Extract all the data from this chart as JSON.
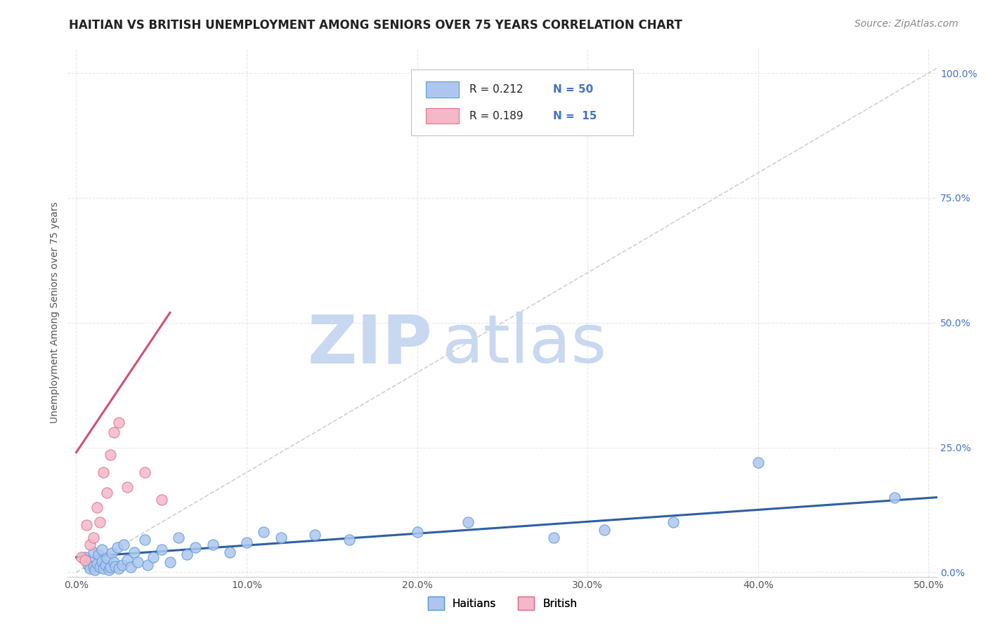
{
  "title": "HAITIAN VS BRITISH UNEMPLOYMENT AMONG SENIORS OVER 75 YEARS CORRELATION CHART",
  "source": "Source: ZipAtlas.com",
  "ylabel": "Unemployment Among Seniors over 75 years",
  "x_tick_labels": [
    "0.0%",
    "10.0%",
    "20.0%",
    "30.0%",
    "40.0%",
    "50.0%"
  ],
  "x_tick_values": [
    0.0,
    0.1,
    0.2,
    0.3,
    0.4,
    0.5
  ],
  "y_tick_labels": [
    "0.0%",
    "25.0%",
    "50.0%",
    "75.0%",
    "100.0%"
  ],
  "y_tick_values": [
    0.0,
    0.25,
    0.5,
    0.75,
    1.0
  ],
  "xlim": [
    -0.005,
    0.505
  ],
  "ylim": [
    -0.01,
    1.05
  ],
  "haitian_scatter_x": [
    0.005,
    0.007,
    0.008,
    0.009,
    0.01,
    0.01,
    0.011,
    0.012,
    0.013,
    0.014,
    0.015,
    0.015,
    0.016,
    0.017,
    0.018,
    0.019,
    0.02,
    0.021,
    0.022,
    0.023,
    0.024,
    0.025,
    0.027,
    0.028,
    0.03,
    0.032,
    0.034,
    0.036,
    0.04,
    0.042,
    0.045,
    0.05,
    0.055,
    0.06,
    0.065,
    0.07,
    0.08,
    0.09,
    0.1,
    0.11,
    0.12,
    0.14,
    0.16,
    0.2,
    0.23,
    0.28,
    0.31,
    0.35,
    0.4,
    0.48
  ],
  "haitian_scatter_y": [
    0.03,
    0.015,
    0.008,
    0.025,
    0.012,
    0.04,
    0.005,
    0.018,
    0.035,
    0.01,
    0.022,
    0.045,
    0.008,
    0.015,
    0.028,
    0.005,
    0.01,
    0.038,
    0.02,
    0.012,
    0.05,
    0.008,
    0.015,
    0.055,
    0.025,
    0.01,
    0.04,
    0.02,
    0.065,
    0.015,
    0.03,
    0.045,
    0.02,
    0.07,
    0.035,
    0.05,
    0.055,
    0.04,
    0.06,
    0.08,
    0.07,
    0.075,
    0.065,
    0.08,
    0.1,
    0.07,
    0.085,
    0.1,
    0.22,
    0.15
  ],
  "british_scatter_x": [
    0.003,
    0.005,
    0.006,
    0.008,
    0.01,
    0.012,
    0.014,
    0.016,
    0.018,
    0.02,
    0.022,
    0.025,
    0.03,
    0.04,
    0.05
  ],
  "british_scatter_y": [
    0.03,
    0.025,
    0.095,
    0.055,
    0.07,
    0.13,
    0.1,
    0.2,
    0.16,
    0.235,
    0.28,
    0.3,
    0.17,
    0.2,
    0.145
  ],
  "haitian_line_x": [
    0.0,
    0.505
  ],
  "haitian_line_y": [
    0.03,
    0.15
  ],
  "british_line_x": [
    0.0,
    0.055
  ],
  "british_line_y": [
    0.24,
    0.52
  ],
  "trendline_x": [
    0.0,
    0.505
  ],
  "trendline_y": [
    0.0,
    1.01
  ],
  "scatter_size": 120,
  "haitian_color": "#aec6ef",
  "haitian_edge_color": "#5b9bd5",
  "british_color": "#f4b8c8",
  "british_edge_color": "#e07090",
  "haitian_line_color": "#2e5fa3",
  "british_line_color": "#d05070",
  "trendline_color": "#d0d0d0",
  "title_color": "#222222",
  "axis_label_color": "#555555",
  "ytick_color": "#4472c4",
  "grid_color": "#e8e8e8",
  "watermark_zip_color": "#c8d8f0",
  "watermark_atlas_color": "#c8d8f0",
  "background_color": "#ffffff",
  "title_fontsize": 12,
  "source_fontsize": 10,
  "ylabel_fontsize": 10,
  "tick_fontsize": 10,
  "legend_R_color": "#222222",
  "legend_N_color": "#4472c4"
}
